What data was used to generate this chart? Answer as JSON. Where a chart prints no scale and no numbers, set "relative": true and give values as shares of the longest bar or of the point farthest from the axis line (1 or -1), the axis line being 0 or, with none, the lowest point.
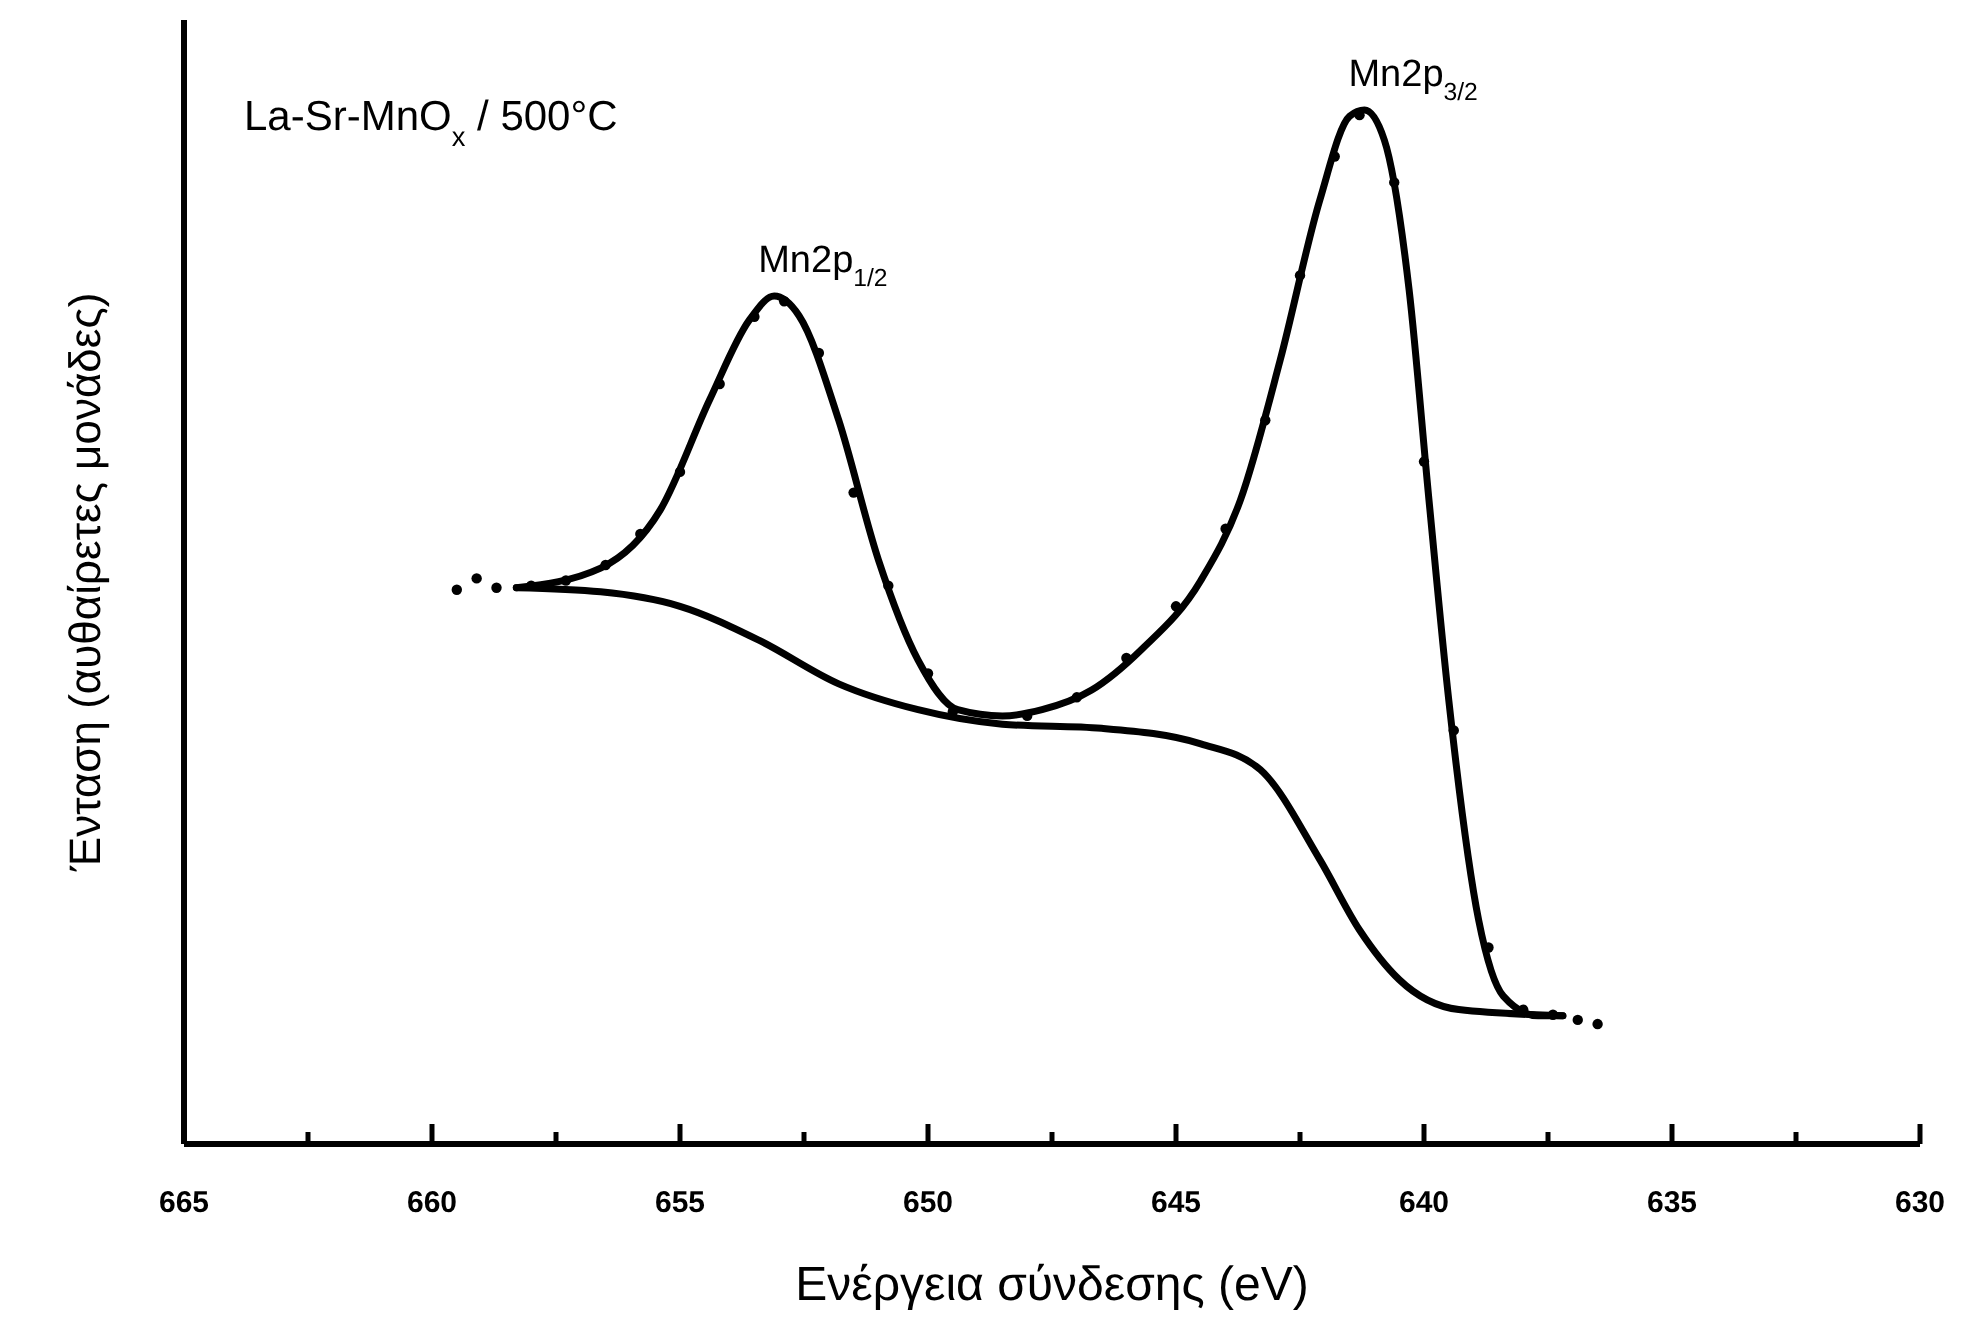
{
  "chart_data": {
    "type": "line",
    "xlabel": "Ενέργεια σύνδεσης (eV)",
    "ylabel": "Ένταση (αυθαίρετες μονάδες)",
    "relative": true,
    "xlim": [
      665,
      630
    ],
    "xticks": [
      665,
      {
        "value": 662.5,
        "label": null
      },
      660,
      {
        "value": 657.5,
        "label": null
      },
      655,
      {
        "value": 652.5,
        "label": null
      },
      650,
      {
        "value": 647.5,
        "label": null
      },
      645,
      {
        "value": 642.5,
        "label": null
      },
      640,
      {
        "value": 637.5,
        "label": null
      },
      635,
      {
        "value": 632.5,
        "label": null
      },
      630
    ],
    "grid": false,
    "line_style": "solid",
    "annotations": [
      "La-Sr-MnO$_{x}$ / 500°C",
      {
        "text": "Mn2p$_{1/2}$",
        "x": 653.1,
        "y": 0.82
      },
      {
        "text": "Mn2p$_{3/2}$",
        "x": 641.2,
        "y": 1.0
      }
    ],
    "series": [
      {
        "color": "#000000",
        "x": [
          658.3,
          656.6,
          655.4,
          654.4,
          653.6,
          653.1,
          652.6,
          651.8,
          651.0,
          650.2,
          649.4,
          648.5,
          647.7,
          646.7,
          645.7,
          644.5,
          643.7,
          642.9,
          642.1,
          641.5,
          641.2,
          640.8,
          640.3,
          639.9,
          639.5,
          638.9,
          638.4,
          637.7,
          637.2
        ],
        "values": [
          0.538,
          0.557,
          0.613,
          0.72,
          0.797,
          0.82,
          0.801,
          0.7,
          0.565,
          0.468,
          0.42,
          0.414,
          0.42,
          0.439,
          0.478,
          0.545,
          0.623,
          0.758,
          0.913,
          0.994,
          1.0,
          0.971,
          0.826,
          0.623,
          0.429,
          0.217,
          0.143,
          0.124,
          0.124
        ]
      },
      {
        "color": "#000000",
        "x": [
          658.3,
          656.6,
          655.0,
          653.4,
          651.8,
          650.2,
          648.5,
          646.5,
          644.5,
          643.3,
          642.1,
          641.3,
          640.5,
          639.3,
          637.2
        ],
        "values": [
          0.538,
          0.534,
          0.52,
          0.487,
          0.445,
          0.42,
          0.406,
          0.402,
          0.387,
          0.362,
          0.275,
          0.207,
          0.159,
          0.13,
          0.124
        ]
      },
      {
        "type": "scatter",
        "color": "#000000",
        "marker": "circle",
        "x": [
          659.5,
          659.1,
          658.7,
          658.0,
          657.3,
          656.5,
          655.8,
          655.0,
          654.2,
          653.5,
          652.9,
          652.2,
          651.5,
          650.8,
          650.0,
          649.5,
          648.8,
          648.0,
          647.0,
          646.0,
          645.0,
          644.0,
          643.2,
          642.5,
          641.8,
          641.3,
          640.6,
          640.0,
          639.4,
          638.7,
          638.0,
          637.4,
          636.9,
          636.5
        ],
        "values": [
          0.536,
          0.547,
          0.538,
          0.54,
          0.545,
          0.56,
          0.59,
          0.65,
          0.735,
          0.8,
          0.815,
          0.765,
          0.63,
          0.54,
          0.455,
          0.418,
          null,
          0.414,
          0.432,
          0.47,
          0.52,
          0.595,
          0.7,
          0.84,
          0.955,
          0.995,
          0.93,
          0.66,
          0.4,
          0.19,
          0.13,
          0.125,
          0.12,
          0.116
        ]
      }
    ]
  }
}
